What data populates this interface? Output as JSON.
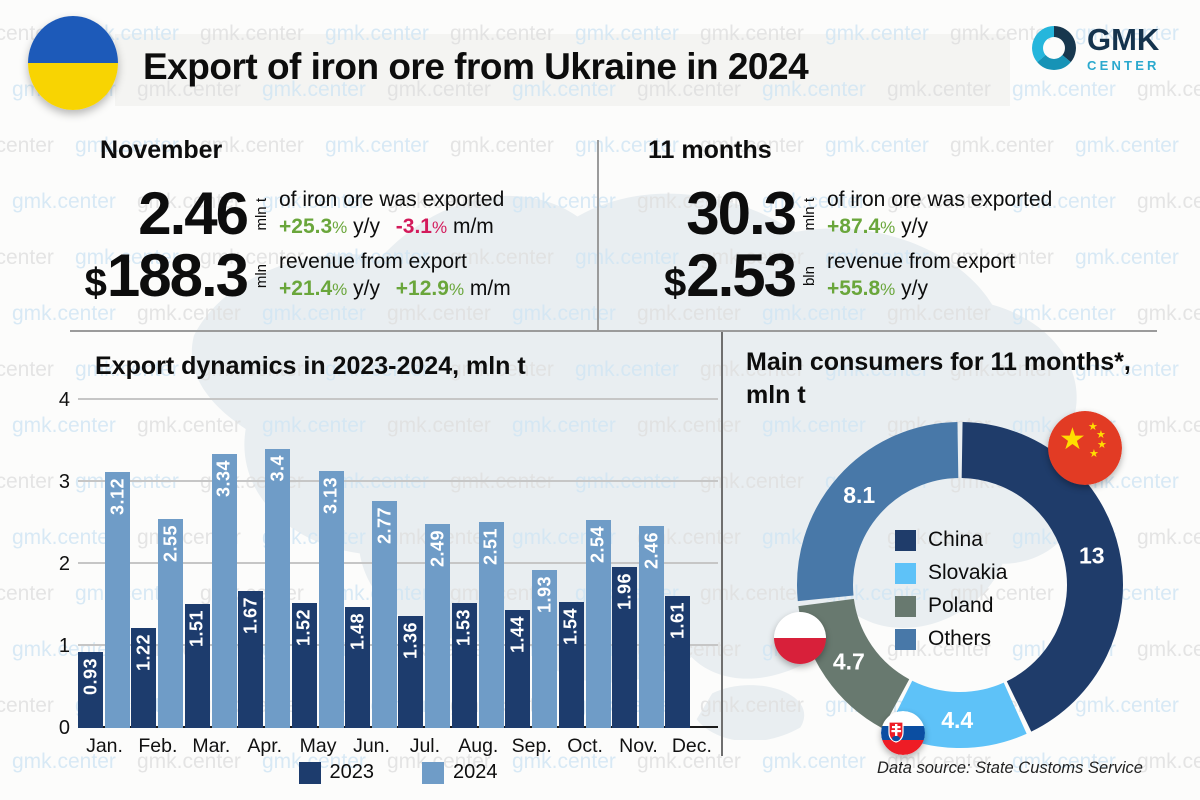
{
  "header": {
    "title": "Export of iron ore from Ukraine in 2024",
    "logo": {
      "name": "GMK",
      "sub": "CENTER"
    }
  },
  "stats": {
    "november": {
      "heading": "November",
      "rows": [
        {
          "prefix": "",
          "value": "2.46",
          "unit": "mln t",
          "desc": "of iron ore was exported",
          "changes": [
            {
              "val": "+25.3",
              "pct": "%",
              "label": "y/y",
              "type": "up"
            },
            {
              "val": "-3.1",
              "pct": "%",
              "label": "m/m",
              "type": "down"
            }
          ]
        },
        {
          "prefix": "$",
          "value": "188.3",
          "unit": "mln",
          "desc": "revenue from export",
          "changes": [
            {
              "val": "+21.4",
              "pct": "%",
              "label": "y/y",
              "type": "up"
            },
            {
              "val": "+12.9",
              "pct": "%",
              "label": "m/m",
              "type": "up"
            }
          ]
        }
      ]
    },
    "eleven_months": {
      "heading": "11 months",
      "rows": [
        {
          "prefix": "",
          "value": "30.3",
          "unit": "mln t",
          "desc": "of iron ore was exported",
          "changes": [
            {
              "val": "+87.4",
              "pct": "%",
              "label": "y/y",
              "type": "up"
            }
          ]
        },
        {
          "prefix": "$",
          "value": "2.53",
          "unit": "bln",
          "desc": "revenue from export",
          "changes": [
            {
              "val": "+55.8",
              "pct": "%",
              "label": "y/y",
              "type": "up"
            }
          ]
        }
      ]
    }
  },
  "chart_data": [
    {
      "type": "bar",
      "title": "Export dynamics in 2023-2024, mln t",
      "categories": [
        "Jan.",
        "Feb.",
        "Mar.",
        "Apr.",
        "May",
        "Jun.",
        "Jul.",
        "Aug.",
        "Sep.",
        "Oct.",
        "Nov.",
        "Dec."
      ],
      "series": [
        {
          "name": "2023",
          "color": "#1d3c6d",
          "values": [
            0.93,
            1.22,
            1.51,
            1.67,
            1.52,
            1.48,
            1.36,
            1.53,
            1.44,
            1.54,
            1.96,
            1.61
          ]
        },
        {
          "name": "2024",
          "color": "#6f9cc7",
          "values": [
            3.12,
            2.55,
            3.34,
            3.4,
            3.13,
            2.77,
            2.49,
            2.51,
            1.93,
            2.54,
            2.46,
            null
          ]
        }
      ],
      "xlabel": "",
      "ylabel": "",
      "ylim": [
        0,
        4
      ],
      "yticks": [
        0,
        1,
        2,
        3,
        4
      ],
      "grid": true,
      "legend_position": "bottom"
    },
    {
      "type": "pie",
      "subtype": "donut",
      "title": "Main consumers for 11 months*, mln t",
      "labels": [
        "China",
        "Slovakia",
        "Poland",
        "Others"
      ],
      "values": [
        13,
        4.4,
        4.7,
        8.1
      ],
      "colors": [
        "#1f3c6a",
        "#5ec2f8",
        "#68796f",
        "#4878a8"
      ],
      "legend_position": "center"
    }
  ],
  "footer": {
    "source": "Data source: State Customs Service"
  },
  "watermark": {
    "text": "gmk.center"
  },
  "colors": {
    "positive": "#6aa63b",
    "negative": "#d31a5b",
    "divider": "#9b9b9b"
  }
}
